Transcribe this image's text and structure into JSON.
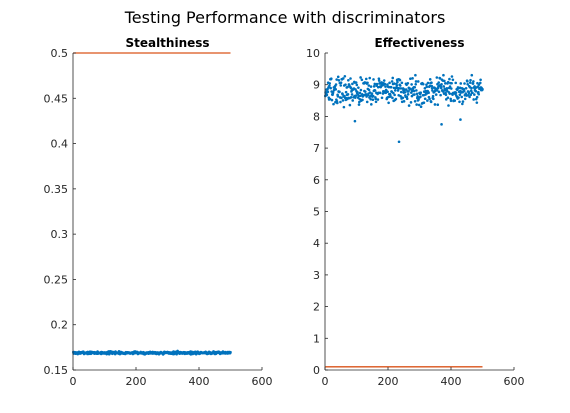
{
  "figure": {
    "title": "Testing Performance with discriminators"
  },
  "colors": {
    "scatter": "#0072BD",
    "line": "#D95319",
    "axis": "#262626"
  },
  "chart_data": [
    {
      "type": "scatter",
      "title": "Stealthiness",
      "xlabel": "",
      "ylabel": "",
      "xlim": [
        0,
        600
      ],
      "ylim": [
        0.15,
        0.5
      ],
      "xticks": [
        "0",
        "200",
        "400",
        "600"
      ],
      "xtick_values": [
        0,
        200,
        400,
        600
      ],
      "yticks": [
        "0.15",
        "0.2",
        "0.25",
        "0.3",
        "0.35",
        "0.4",
        "0.45",
        "0.5"
      ],
      "ytick_values": [
        0.15,
        0.2,
        0.25,
        0.3,
        0.35,
        0.4,
        0.45,
        0.5
      ],
      "grid": false,
      "series": [
        {
          "type": "scatter",
          "x_range": [
            1,
            500
          ],
          "n_points": 500,
          "y_mean": 0.169,
          "y_spread": 0.0015
        },
        {
          "type": "line",
          "x": [
            1,
            500
          ],
          "y": [
            0.5,
            0.5
          ]
        }
      ]
    },
    {
      "type": "scatter",
      "title": "Effectiveness",
      "xlabel": "",
      "ylabel": "",
      "xlim": [
        0,
        600
      ],
      "ylim": [
        0,
        10
      ],
      "xticks": [
        "0",
        "200",
        "400",
        "600"
      ],
      "xtick_values": [
        0,
        200,
        400,
        600
      ],
      "yticks": [
        "0",
        "1",
        "2",
        "3",
        "4",
        "5",
        "6",
        "7",
        "8",
        "9",
        "10"
      ],
      "ytick_values": [
        0,
        1,
        2,
        3,
        4,
        5,
        6,
        7,
        8,
        9,
        10
      ],
      "grid": false,
      "series": [
        {
          "type": "scatter",
          "x_range": [
            1,
            500
          ],
          "n_points": 500,
          "y_mean": 8.8,
          "y_spread": 0.45,
          "outliers": [
            {
              "x": 235,
              "y": 7.2
            },
            {
              "x": 370,
              "y": 7.75
            },
            {
              "x": 95,
              "y": 7.85
            },
            {
              "x": 430,
              "y": 7.9
            }
          ]
        },
        {
          "type": "line",
          "x": [
            1,
            500
          ],
          "y": [
            0.1,
            0.1
          ]
        }
      ]
    }
  ]
}
